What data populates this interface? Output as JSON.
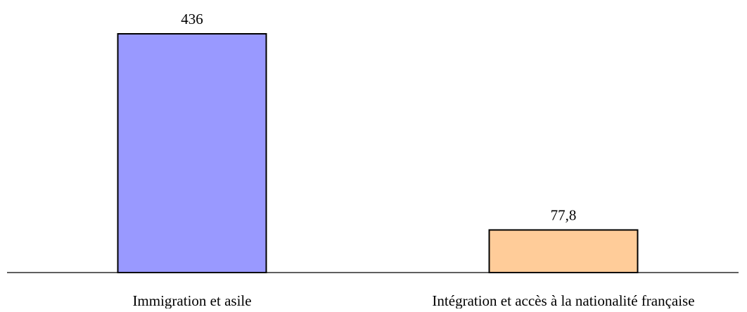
{
  "chart_data": {
    "type": "bar",
    "categories": [
      "Immigration et asile",
      "Intégration et accès à la nationalité française"
    ],
    "values": [
      436,
      77.8
    ],
    "value_labels": [
      "436",
      "77,8"
    ],
    "colors": [
      "#9999ff",
      "#ffcc99"
    ],
    "title": "",
    "xlabel": "",
    "ylabel": "",
    "ylim": [
      0,
      436
    ],
    "grid": false,
    "legend": "none"
  }
}
